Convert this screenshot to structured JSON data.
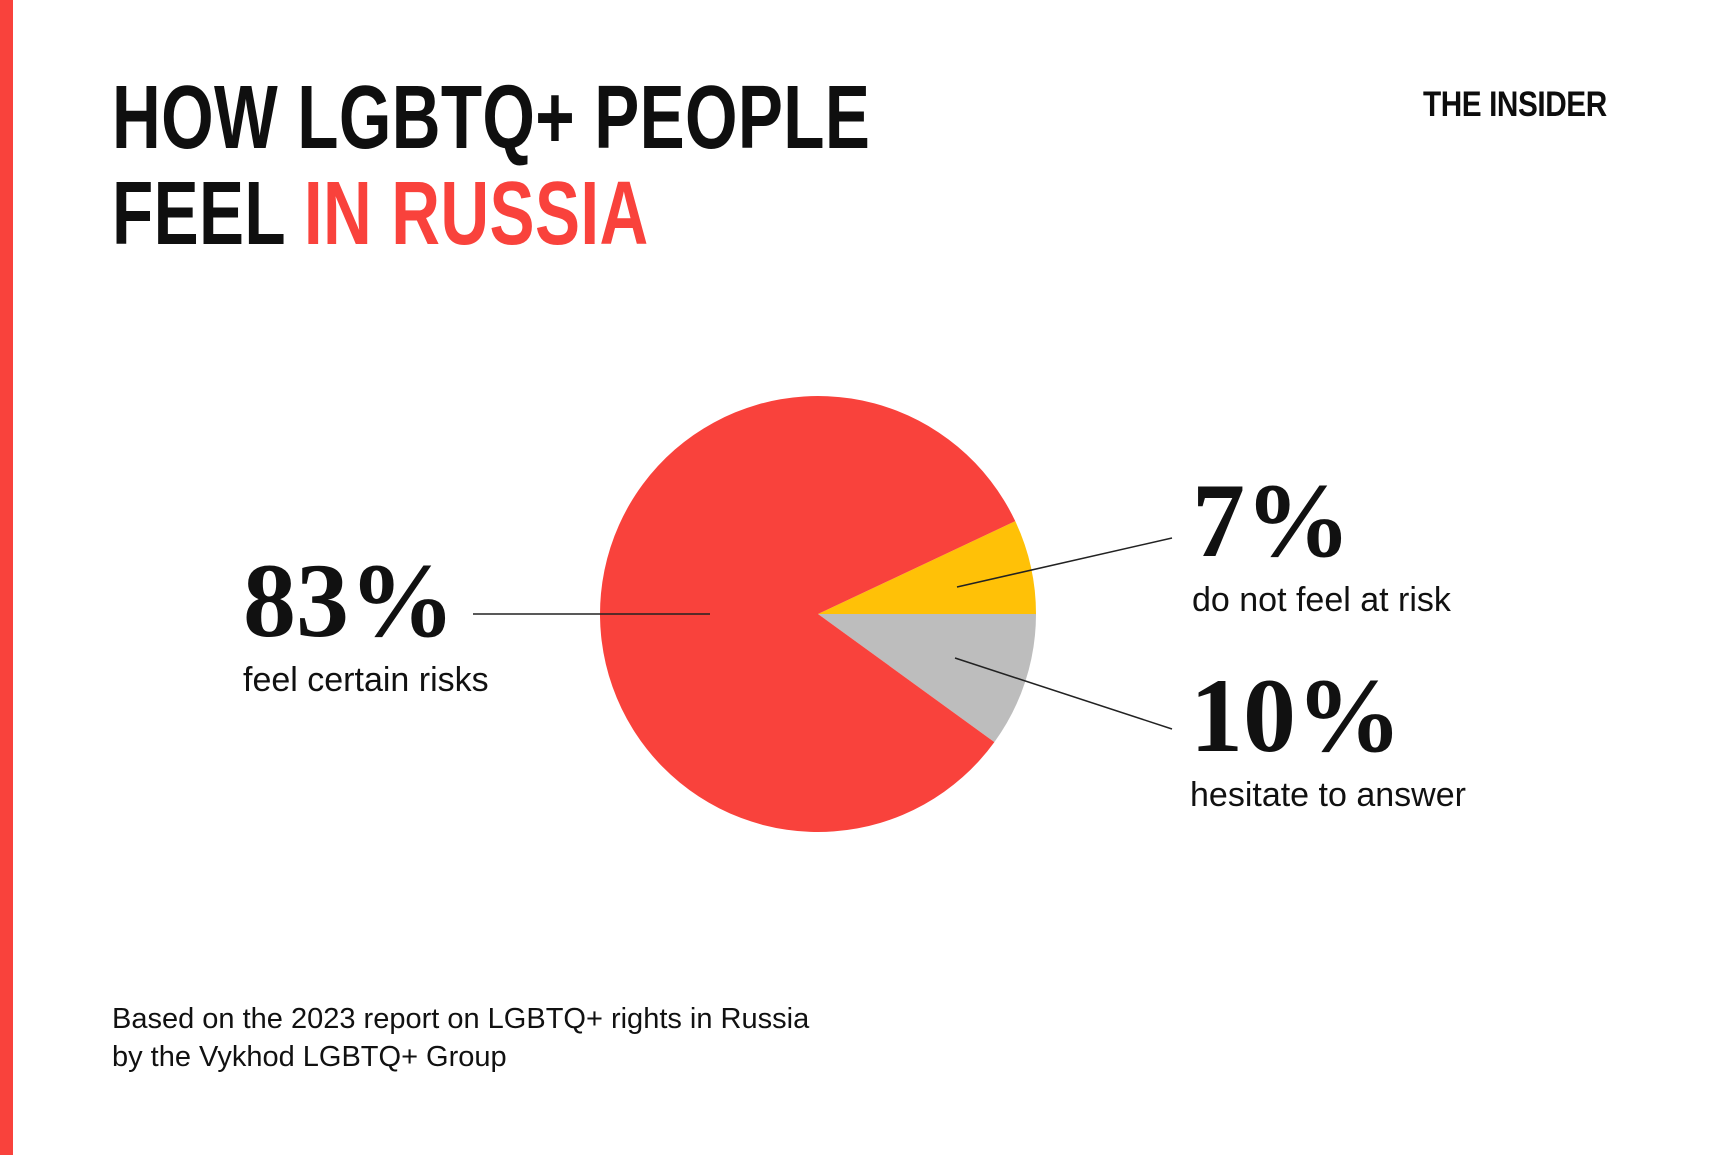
{
  "title": {
    "line1": "HOW LGBTQ+ PEOPLE",
    "line2_black": "FEEL",
    "line2_red": "IN RUSSIA",
    "accent_color": "#F9423C"
  },
  "logo": {
    "text": "THE INSIDER"
  },
  "callouts": [
    {
      "value": "83%",
      "label": "feel certain risks"
    },
    {
      "value": "7%",
      "label": "do not feel at risk"
    },
    {
      "value": "10%",
      "label": "hesitate to answer"
    }
  ],
  "source": {
    "line1": "Based on the 2023 report on LGBTQ+ rights in Russia",
    "line2": "by the Vykhod LGBTQ+ Group"
  },
  "chart_data": {
    "type": "pie",
    "title": "How LGBTQ+ people feel in Russia",
    "slices": [
      {
        "label": "do not feel at risk",
        "value": 7,
        "color": "#FFC107"
      },
      {
        "label": "hesitate to answer",
        "value": 10,
        "color": "#BDBDBD"
      },
      {
        "label": "feel certain risks",
        "value": 83,
        "color": "#F9423C"
      }
    ],
    "start_angle_deg": -25.2,
    "legend": "none",
    "labels_as_callouts": true,
    "leader_line_color": "#222222"
  }
}
